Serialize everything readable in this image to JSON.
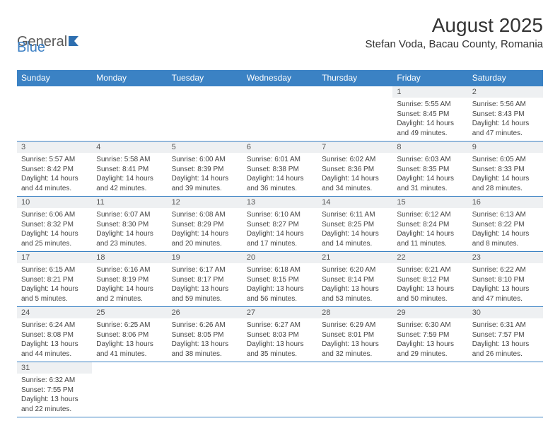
{
  "logo": {
    "text1": "General",
    "text2": "Blue"
  },
  "title": "August 2025",
  "location": "Stefan Voda, Bacau County, Romania",
  "colors": {
    "header_bg": "#3b82c4",
    "header_text": "#ffffff",
    "daynum_bg": "#eef0f2",
    "border": "#3b82c4",
    "text": "#444444",
    "logo_gray": "#5a5a5a",
    "logo_blue": "#3b7fc4"
  },
  "weekdays": [
    "Sunday",
    "Monday",
    "Tuesday",
    "Wednesday",
    "Thursday",
    "Friday",
    "Saturday"
  ],
  "weeks": [
    [
      null,
      null,
      null,
      null,
      null,
      {
        "d": "1",
        "sr": "5:55 AM",
        "ss": "8:45 PM",
        "dl": "14 hours and 49 minutes."
      },
      {
        "d": "2",
        "sr": "5:56 AM",
        "ss": "8:43 PM",
        "dl": "14 hours and 47 minutes."
      }
    ],
    [
      {
        "d": "3",
        "sr": "5:57 AM",
        "ss": "8:42 PM",
        "dl": "14 hours and 44 minutes."
      },
      {
        "d": "4",
        "sr": "5:58 AM",
        "ss": "8:41 PM",
        "dl": "14 hours and 42 minutes."
      },
      {
        "d": "5",
        "sr": "6:00 AM",
        "ss": "8:39 PM",
        "dl": "14 hours and 39 minutes."
      },
      {
        "d": "6",
        "sr": "6:01 AM",
        "ss": "8:38 PM",
        "dl": "14 hours and 36 minutes."
      },
      {
        "d": "7",
        "sr": "6:02 AM",
        "ss": "8:36 PM",
        "dl": "14 hours and 34 minutes."
      },
      {
        "d": "8",
        "sr": "6:03 AM",
        "ss": "8:35 PM",
        "dl": "14 hours and 31 minutes."
      },
      {
        "d": "9",
        "sr": "6:05 AM",
        "ss": "8:33 PM",
        "dl": "14 hours and 28 minutes."
      }
    ],
    [
      {
        "d": "10",
        "sr": "6:06 AM",
        "ss": "8:32 PM",
        "dl": "14 hours and 25 minutes."
      },
      {
        "d": "11",
        "sr": "6:07 AM",
        "ss": "8:30 PM",
        "dl": "14 hours and 23 minutes."
      },
      {
        "d": "12",
        "sr": "6:08 AM",
        "ss": "8:29 PM",
        "dl": "14 hours and 20 minutes."
      },
      {
        "d": "13",
        "sr": "6:10 AM",
        "ss": "8:27 PM",
        "dl": "14 hours and 17 minutes."
      },
      {
        "d": "14",
        "sr": "6:11 AM",
        "ss": "8:25 PM",
        "dl": "14 hours and 14 minutes."
      },
      {
        "d": "15",
        "sr": "6:12 AM",
        "ss": "8:24 PM",
        "dl": "14 hours and 11 minutes."
      },
      {
        "d": "16",
        "sr": "6:13 AM",
        "ss": "8:22 PM",
        "dl": "14 hours and 8 minutes."
      }
    ],
    [
      {
        "d": "17",
        "sr": "6:15 AM",
        "ss": "8:21 PM",
        "dl": "14 hours and 5 minutes."
      },
      {
        "d": "18",
        "sr": "6:16 AM",
        "ss": "8:19 PM",
        "dl": "14 hours and 2 minutes."
      },
      {
        "d": "19",
        "sr": "6:17 AM",
        "ss": "8:17 PM",
        "dl": "13 hours and 59 minutes."
      },
      {
        "d": "20",
        "sr": "6:18 AM",
        "ss": "8:15 PM",
        "dl": "13 hours and 56 minutes."
      },
      {
        "d": "21",
        "sr": "6:20 AM",
        "ss": "8:14 PM",
        "dl": "13 hours and 53 minutes."
      },
      {
        "d": "22",
        "sr": "6:21 AM",
        "ss": "8:12 PM",
        "dl": "13 hours and 50 minutes."
      },
      {
        "d": "23",
        "sr": "6:22 AM",
        "ss": "8:10 PM",
        "dl": "13 hours and 47 minutes."
      }
    ],
    [
      {
        "d": "24",
        "sr": "6:24 AM",
        "ss": "8:08 PM",
        "dl": "13 hours and 44 minutes."
      },
      {
        "d": "25",
        "sr": "6:25 AM",
        "ss": "8:06 PM",
        "dl": "13 hours and 41 minutes."
      },
      {
        "d": "26",
        "sr": "6:26 AM",
        "ss": "8:05 PM",
        "dl": "13 hours and 38 minutes."
      },
      {
        "d": "27",
        "sr": "6:27 AM",
        "ss": "8:03 PM",
        "dl": "13 hours and 35 minutes."
      },
      {
        "d": "28",
        "sr": "6:29 AM",
        "ss": "8:01 PM",
        "dl": "13 hours and 32 minutes."
      },
      {
        "d": "29",
        "sr": "6:30 AM",
        "ss": "7:59 PM",
        "dl": "13 hours and 29 minutes."
      },
      {
        "d": "30",
        "sr": "6:31 AM",
        "ss": "7:57 PM",
        "dl": "13 hours and 26 minutes."
      }
    ],
    [
      {
        "d": "31",
        "sr": "6:32 AM",
        "ss": "7:55 PM",
        "dl": "13 hours and 22 minutes."
      },
      null,
      null,
      null,
      null,
      null,
      null
    ]
  ],
  "labels": {
    "sunrise": "Sunrise:",
    "sunset": "Sunset:",
    "daylight": "Daylight:"
  }
}
